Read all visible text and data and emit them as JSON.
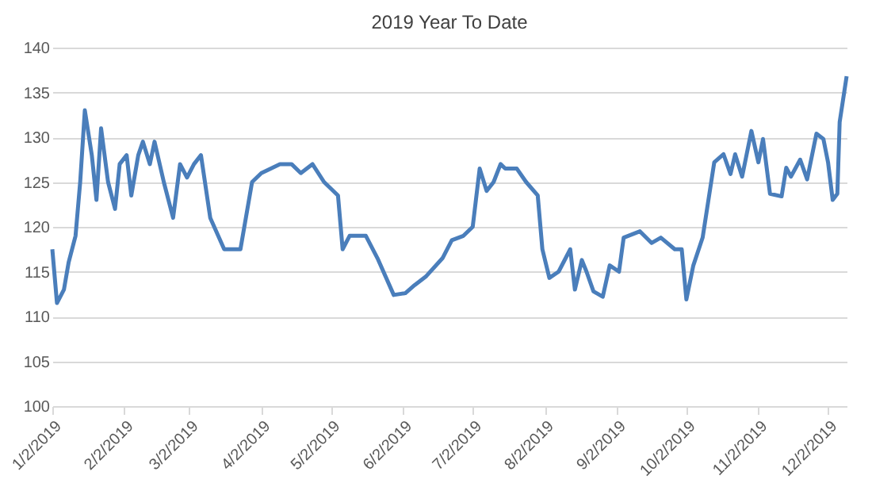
{
  "chart_data": {
    "type": "line",
    "title": "2019 Year To Date",
    "x": [
      "2019-01-02",
      "2019-01-04",
      "2019-01-07",
      "2019-01-09",
      "2019-01-12",
      "2019-01-14",
      "2019-01-16",
      "2019-01-19",
      "2019-01-21",
      "2019-01-23",
      "2019-01-26",
      "2019-01-29",
      "2019-01-31",
      "2019-02-03",
      "2019-02-05",
      "2019-02-08",
      "2019-02-10",
      "2019-02-13",
      "2019-02-15",
      "2019-02-19",
      "2019-02-23",
      "2019-02-26",
      "2019-03-01",
      "2019-03-04",
      "2019-03-07",
      "2019-03-11",
      "2019-03-17",
      "2019-03-24",
      "2019-03-29",
      "2019-04-02",
      "2019-04-10",
      "2019-04-15",
      "2019-04-19",
      "2019-04-24",
      "2019-04-29",
      "2019-05-05",
      "2019-05-07",
      "2019-05-10",
      "2019-05-17",
      "2019-05-22",
      "2019-05-29",
      "2019-06-03",
      "2019-06-07",
      "2019-06-12",
      "2019-06-19",
      "2019-06-23",
      "2019-06-28",
      "2019-07-02",
      "2019-07-05",
      "2019-07-08",
      "2019-07-11",
      "2019-07-14",
      "2019-07-16",
      "2019-07-21",
      "2019-07-25",
      "2019-07-30",
      "2019-08-01",
      "2019-08-04",
      "2019-08-08",
      "2019-08-13",
      "2019-08-15",
      "2019-08-18",
      "2019-08-20",
      "2019-08-23",
      "2019-08-27",
      "2019-08-30",
      "2019-09-03",
      "2019-09-05",
      "2019-09-12",
      "2019-09-17",
      "2019-09-21",
      "2019-09-27",
      "2019-09-30",
      "2019-10-02",
      "2019-10-05",
      "2019-10-09",
      "2019-10-14",
      "2019-10-18",
      "2019-10-21",
      "2019-10-23",
      "2019-10-26",
      "2019-10-30",
      "2019-11-02",
      "2019-11-04",
      "2019-11-07",
      "2019-11-12",
      "2019-11-14",
      "2019-11-16",
      "2019-11-20",
      "2019-11-23",
      "2019-11-27",
      "2019-11-30",
      "2019-12-02",
      "2019-12-04",
      "2019-12-06",
      "2019-12-07",
      "2019-12-10"
    ],
    "series": [
      {
        "color": "#4a7ebb",
        "values": [
          117.5,
          111.5,
          113,
          116,
          119,
          125,
          133,
          128,
          123,
          131,
          125,
          122,
          127,
          128,
          123.5,
          128,
          129.5,
          127,
          129.5,
          125,
          121,
          127,
          125.5,
          127,
          128,
          121,
          117.5,
          117.5,
          125,
          126,
          127,
          127,
          126,
          127,
          125,
          123.5,
          117.5,
          119,
          119,
          116.5,
          112.4,
          112.6,
          113.5,
          114.5,
          116.5,
          118.5,
          119,
          120,
          126.5,
          124,
          125,
          127,
          126.5,
          126.5,
          125,
          123.5,
          117.5,
          114.3,
          115,
          117.5,
          113,
          116.3,
          115,
          112.8,
          112.2,
          115.7,
          115,
          118.8,
          119.5,
          118.2,
          118.8,
          117.5,
          117.5,
          111.9,
          115.7,
          118.8,
          127.2,
          128.1,
          125.9,
          128.1,
          125.6,
          130.7,
          127.2,
          129.8,
          123.7,
          123.4,
          126.6,
          125.6,
          127.5,
          125.3,
          130.4,
          129.8,
          127.2,
          123,
          123.7,
          131.7,
          136.8
        ]
      }
    ],
    "xlim": [
      "2019-01-02",
      "2019-12-10"
    ],
    "xticks": [
      {
        "value": "2019-01-02",
        "label": "1/2/2019"
      },
      {
        "value": "2019-02-02",
        "label": "2/2/2019"
      },
      {
        "value": "2019-03-02",
        "label": "3/2/2019"
      },
      {
        "value": "2019-04-02",
        "label": "4/2/2019"
      },
      {
        "value": "2019-05-02",
        "label": "5/2/2019"
      },
      {
        "value": "2019-06-02",
        "label": "6/2/2019"
      },
      {
        "value": "2019-07-02",
        "label": "7/2/2019"
      },
      {
        "value": "2019-08-02",
        "label": "8/2/2019"
      },
      {
        "value": "2019-09-02",
        "label": "9/2/2019"
      },
      {
        "value": "2019-10-02",
        "label": "10/2/2019"
      },
      {
        "value": "2019-11-02",
        "label": "11/2/2019"
      },
      {
        "value": "2019-12-02",
        "label": "12/2/2019"
      }
    ],
    "ylim": [
      100,
      140
    ],
    "yticks": [
      100,
      105,
      110,
      115,
      120,
      125,
      130,
      135,
      140
    ],
    "grid": "y",
    "legend": false,
    "marker": "none",
    "line_style": "solid"
  }
}
